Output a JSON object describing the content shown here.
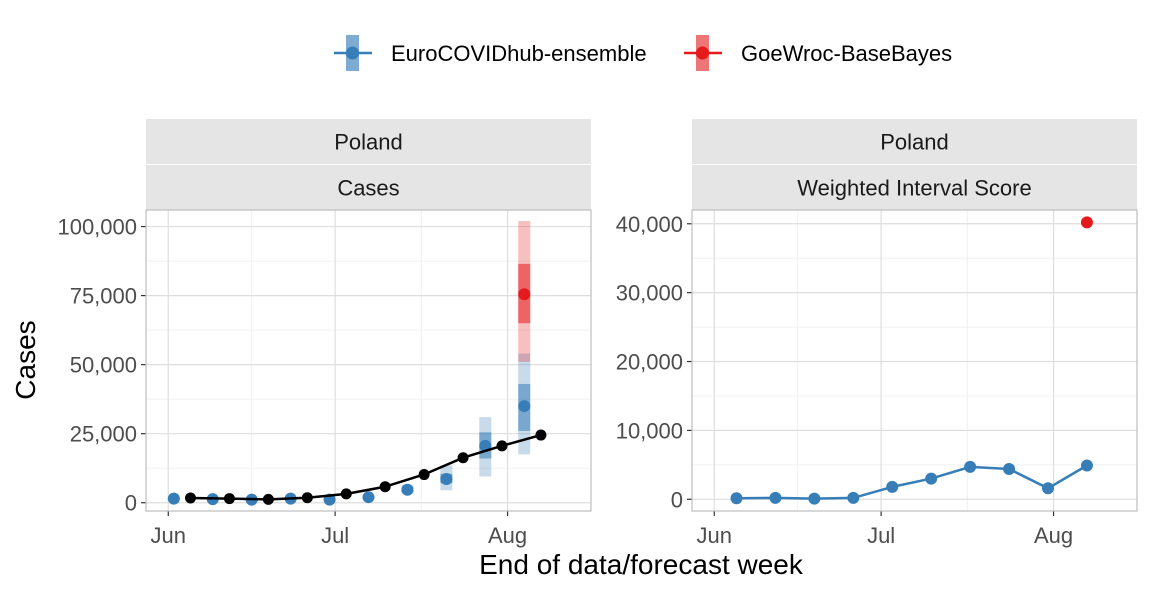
{
  "legend": {
    "items": [
      {
        "label": "EuroCOVIDhub-ensemble",
        "color": "#377eb8"
      },
      {
        "label": "GoeWroc-BaseBayes",
        "color": "#e41a1c"
      }
    ]
  },
  "axes": {
    "x_title": "End of data/forecast week",
    "y_title": "Cases"
  },
  "x_ticks": [
    {
      "label": "Jun",
      "date": "2021-06-01"
    },
    {
      "label": "Jul",
      "date": "2021-07-01"
    },
    {
      "label": "Aug",
      "date": "2021-08-01"
    }
  ],
  "observed_color": "#000000",
  "chart_data": [
    {
      "type": "line",
      "strip_top": "Poland",
      "strip_bottom": "Cases",
      "ylim": [
        -3000,
        106000
      ],
      "y_ticks": [
        {
          "value": 0,
          "label": "0"
        },
        {
          "value": 25000,
          "label": "25,000"
        },
        {
          "value": 50000,
          "label": "50,000"
        },
        {
          "value": 75000,
          "label": "75,000"
        },
        {
          "value": 100000,
          "label": "100,000"
        }
      ],
      "observed": {
        "x": [
          "2021-06-05",
          "2021-06-12",
          "2021-06-19",
          "2021-06-26",
          "2021-07-03",
          "2021-07-10",
          "2021-07-17",
          "2021-07-24",
          "2021-07-31",
          "2021-08-07"
        ],
        "y": [
          1700,
          1500,
          1200,
          1800,
          3200,
          5800,
          10200,
          16300,
          20600,
          24500
        ]
      },
      "forecasts": [
        {
          "name": "EuroCOVIDhub-ensemble",
          "x": [
            "2021-06-05",
            "2021-06-12",
            "2021-06-19",
            "2021-06-26",
            "2021-07-03",
            "2021-07-10",
            "2021-07-17",
            "2021-07-24",
            "2021-07-31",
            "2021-08-07"
          ],
          "median": [
            1500,
            1300,
            1100,
            1500,
            1100,
            2000,
            4700,
            8600,
            20600,
            35000
          ],
          "inner_lo": [
            1300,
            1100,
            900,
            1300,
            900,
            1700,
            4000,
            7000,
            16000,
            26000
          ],
          "inner_hi": [
            1700,
            1500,
            1300,
            1700,
            1300,
            2300,
            5400,
            10500,
            25500,
            43000
          ],
          "outer_lo": [
            1100,
            900,
            700,
            1100,
            700,
            1400,
            3300,
            4500,
            9500,
            17500
          ],
          "outer_hi": [
            1900,
            1700,
            1500,
            1900,
            1500,
            2700,
            6500,
            13500,
            31000,
            54000
          ]
        },
        {
          "name": "GoeWroc-BaseBayes",
          "x": [
            "2021-08-07"
          ],
          "median": [
            75500
          ],
          "inner_lo": [
            65000
          ],
          "inner_hi": [
            86500
          ],
          "outer_lo": [
            51000
          ],
          "outer_hi": [
            102000
          ]
        }
      ]
    },
    {
      "type": "line",
      "strip_top": "Poland",
      "strip_bottom": "Weighted Interval Score",
      "ylim": [
        -1700,
        42000
      ],
      "y_ticks": [
        {
          "value": 0,
          "label": "0"
        },
        {
          "value": 10000,
          "label": "10,000"
        },
        {
          "value": 20000,
          "label": "20,000"
        },
        {
          "value": 30000,
          "label": "30,000"
        },
        {
          "value": 40000,
          "label": "40,000"
        }
      ],
      "series": [
        {
          "name": "EuroCOVIDhub-ensemble",
          "x": [
            "2021-06-05",
            "2021-06-12",
            "2021-06-19",
            "2021-06-26",
            "2021-07-03",
            "2021-07-10",
            "2021-07-17",
            "2021-07-24",
            "2021-07-31",
            "2021-08-07"
          ],
          "y": [
            150,
            200,
            100,
            200,
            1800,
            3000,
            4700,
            4400,
            1600,
            4900
          ]
        },
        {
          "name": "GoeWroc-BaseBayes",
          "x": [
            "2021-08-07"
          ],
          "y": [
            40200
          ]
        }
      ]
    }
  ]
}
